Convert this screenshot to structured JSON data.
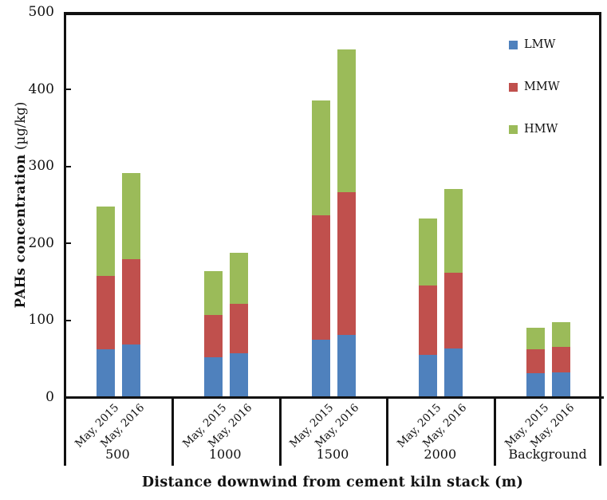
{
  "chart_data": {
    "type": "bar",
    "stacked": true,
    "title": "",
    "xlabel": "Distance downwind from cement kiln stack (m)",
    "ylabel": "PAHs concentration (µg/kg)",
    "ylabel_bold_part": "PAHs  concentration",
    "ylabel_unit_part": " (µg/kg)",
    "ylim": [
      0,
      500
    ],
    "yticks": [
      0,
      100,
      200,
      300,
      400,
      500
    ],
    "grid": false,
    "legend_position": "top-right",
    "legend": [
      "LMW",
      "MMW",
      "HMW"
    ],
    "categories": [
      "500",
      "1000",
      "1500",
      "2000",
      "Background"
    ],
    "subcategories": [
      "May, 2015",
      "May, 2016"
    ],
    "series": [
      {
        "name": "LMW",
        "color": "#4F81BD",
        "values": [
          [
            62,
            68
          ],
          [
            52,
            57
          ],
          [
            75,
            81
          ],
          [
            55,
            63
          ],
          [
            31,
            32
          ]
        ]
      },
      {
        "name": "MMW",
        "color": "#C0504D",
        "values": [
          [
            95,
            111
          ],
          [
            55,
            64
          ],
          [
            161,
            185
          ],
          [
            90,
            99
          ],
          [
            31,
            33
          ]
        ]
      },
      {
        "name": "HMW",
        "color": "#9BBB59",
        "values": [
          [
            91,
            112
          ],
          [
            57,
            67
          ],
          [
            150,
            186
          ],
          [
            87,
            108
          ],
          [
            28,
            32
          ]
        ]
      }
    ],
    "bar_totals": [
      [
        248,
        291
      ],
      [
        164,
        188
      ],
      [
        386,
        452
      ],
      [
        232,
        270
      ],
      [
        90,
        97
      ]
    ]
  }
}
